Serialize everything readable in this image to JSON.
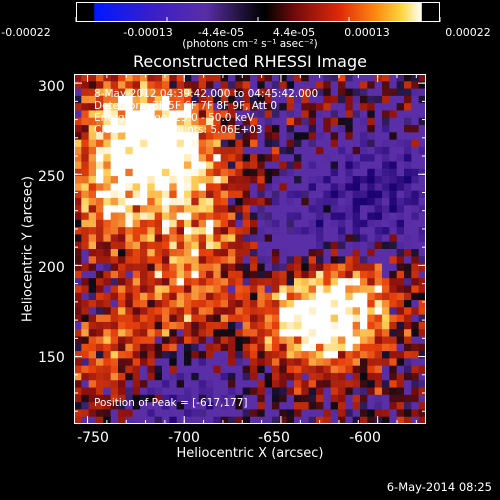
{
  "colorbar": {
    "ticks": [
      "-0.00022",
      "-0.00013",
      "-4.4e-05",
      "4.4e-05",
      "0.00013",
      "0.00022"
    ],
    "units": "(photons cm⁻² s⁻¹ asec⁻²)"
  },
  "chart_data": {
    "type": "heatmap",
    "title": "Reconstructed RHESSI Image",
    "xlabel": "Heliocentric X (arcsec)",
    "ylabel": "Heliocentric Y (arcsec)",
    "xlim": [
      -757,
      -575
    ],
    "ylim": [
      113,
      305
    ],
    "xticks": [
      "-750",
      "-700",
      "-650",
      "-600"
    ],
    "yticks": [
      "150",
      "200",
      "250",
      "300"
    ],
    "colorscale_range": [
      -0.00022,
      0.00022
    ],
    "colors": {
      "negative_deep": "#1a0070",
      "negative": "#5a2ea6",
      "zero": "#0a0a14",
      "low": "#8a0f0f",
      "mid": "#e8420c",
      "high": "#ffd25a",
      "peak": "#ffffff"
    },
    "peak_position": [
      -617,
      177
    ],
    "bright_regions": [
      {
        "center": [
          -706,
          262
        ],
        "level": 0.95
      },
      {
        "center": [
          -727,
          280
        ],
        "level": 0.8
      },
      {
        "center": [
          -738,
          236
        ],
        "level": 0.7
      },
      {
        "center": [
          -690,
          220
        ],
        "level": 0.6
      },
      {
        "center": [
          -617,
          177
        ],
        "level": 1.0
      },
      {
        "center": [
          -640,
          170
        ],
        "level": 0.75
      },
      {
        "center": [
          -738,
          150
        ],
        "level": 0.55
      },
      {
        "center": [
          -700,
          180
        ],
        "level": 0.5
      }
    ],
    "negative_regions": [
      {
        "center": [
          -600,
          240
        ],
        "level": 0.8
      },
      {
        "center": [
          -700,
          130
        ],
        "level": 0.5
      },
      {
        "center": [
          -645,
          215
        ],
        "level": 0.45
      }
    ],
    "annotations": [
      "8-May-2012 04:39:42.000 to 04:45:42.000",
      "Detectors: 3F 5F 6F 7F 8F 9F, Att 0",
      "Energy Range: 25.0 - 50.0 keV",
      "Clean     Total counts: 5.06E+03",
      "Position of Peak = [-617,177]"
    ]
  },
  "footer": "6-May-2014 08:25"
}
